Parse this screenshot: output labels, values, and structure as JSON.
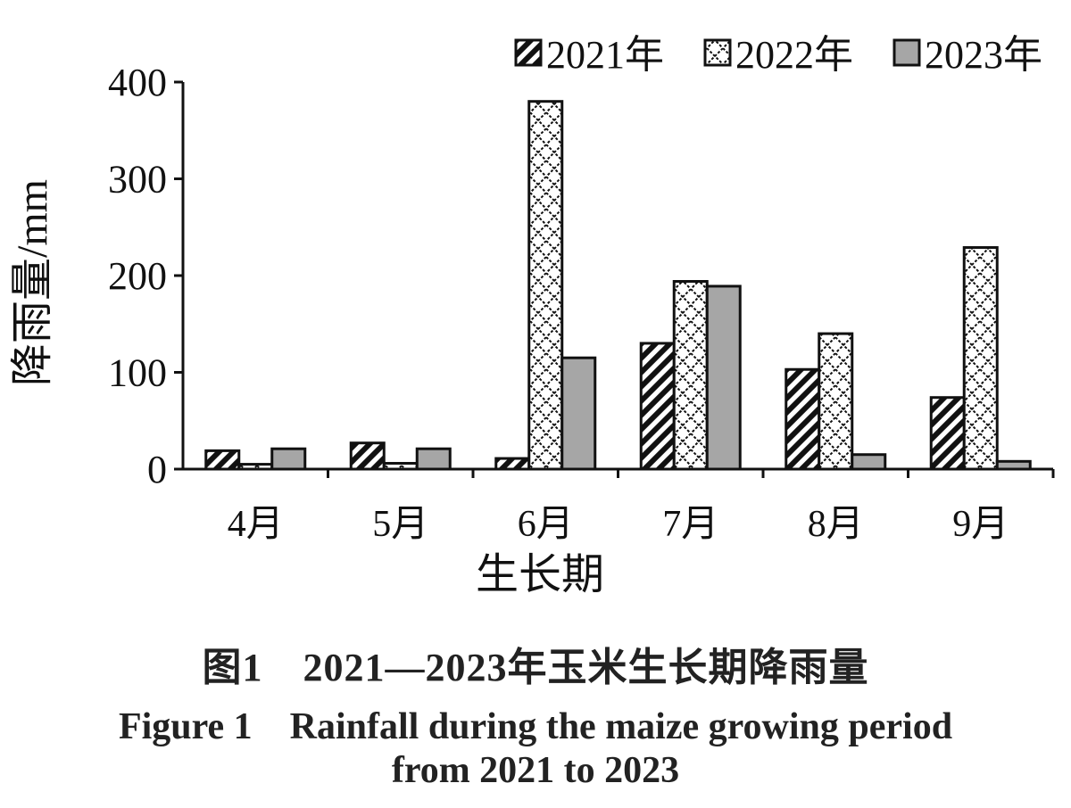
{
  "chart_data": {
    "type": "bar",
    "categories": [
      "4月",
      "5月",
      "6月",
      "7月",
      "8月",
      "9月"
    ],
    "series": [
      {
        "name": "2021年",
        "values": [
          19,
          27,
          11,
          130,
          103,
          74
        ],
        "pattern": "diagonal-stripes"
      },
      {
        "name": "2022年",
        "values": [
          5,
          6,
          380,
          194,
          140,
          229
        ],
        "pattern": "crosshatch"
      },
      {
        "name": "2023年",
        "values": [
          21,
          21,
          115,
          189,
          15,
          8
        ],
        "pattern": "solid-gray"
      }
    ],
    "title": "",
    "xlabel": "生长期",
    "ylabel": "降雨量/mm",
    "ylim": [
      0,
      400
    ],
    "yticks": [
      "0",
      "100",
      "200",
      "300",
      "400"
    ],
    "grid": false,
    "legend_position": "top-right",
    "colors": {
      "axis": "#111111",
      "bar_outline": "#111111",
      "solid_fill": "#a6a6a6",
      "pattern_fill": "#ffffff"
    }
  },
  "caption": {
    "cn": "图1　2021—2023年玉米生长期降雨量",
    "en_line1": "Figure 1　Rainfall during the maize growing period",
    "en_line2": "from 2021 to 2023"
  }
}
